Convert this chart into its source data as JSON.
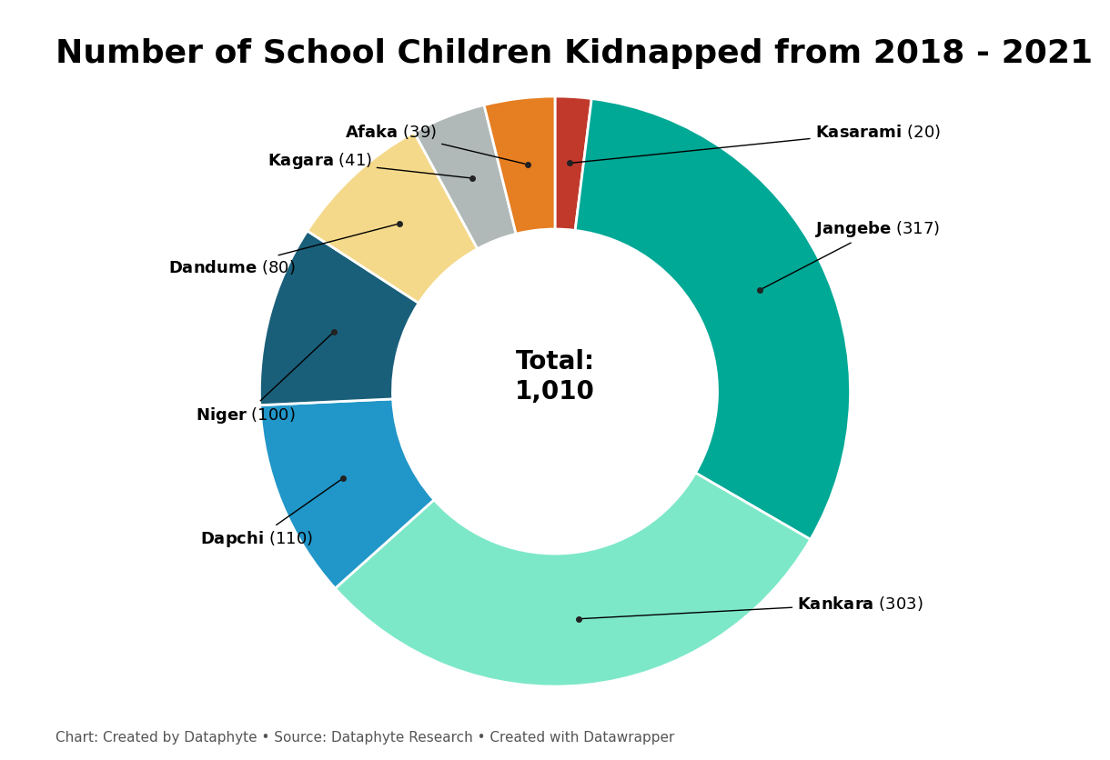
{
  "title": "Number of School Children Kidnapped from 2018 - 2021",
  "total_label": "Total:\n1,010",
  "caption": "Chart: Created by Dataphyte • Source: Dataphyte Research • Created with Datawrapper",
  "segments": [
    {
      "label": "Kasarami",
      "value": 20,
      "color": "#c0392b"
    },
    {
      "label": "Jangebe",
      "value": 317,
      "color": "#00a896"
    },
    {
      "label": "Kankara",
      "value": 303,
      "color": "#7de8c8"
    },
    {
      "label": "Dapchi",
      "value": 110,
      "color": "#2196c8"
    },
    {
      "label": "Niger",
      "value": 100,
      "color": "#1a5f7a"
    },
    {
      "label": "Dandume",
      "value": 80,
      "color": "#f5d98a"
    },
    {
      "label": "Kagara",
      "value": 41,
      "color": "#b0b8b8"
    },
    {
      "label": "Afaka",
      "value": 39,
      "color": "#e67e22"
    }
  ],
  "background_color": "#ffffff",
  "title_fontsize": 26,
  "label_fontsize": 13,
  "caption_fontsize": 11,
  "donut_width": 0.45
}
